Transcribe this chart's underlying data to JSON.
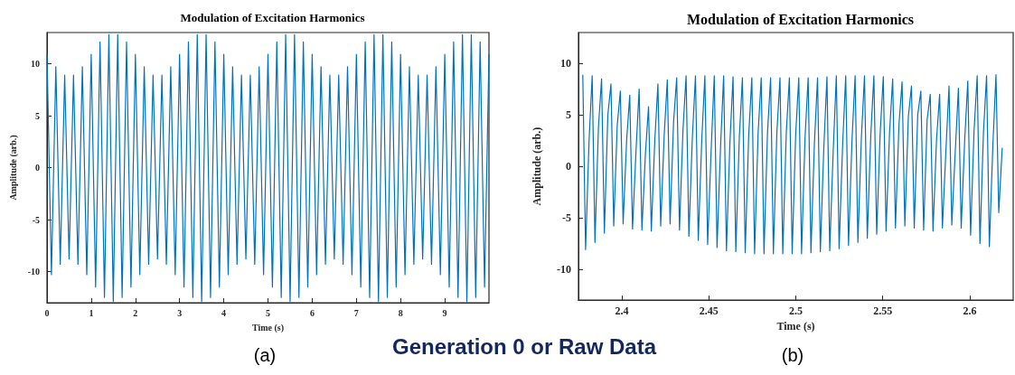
{
  "chart_data": [
    {
      "type": "line",
      "title": "Modulation of Excitation Harmonics",
      "xlabel": "Time (s)",
      "ylabel": "Amplitude (arb.)",
      "annotations": [
        "(a)",
        "Generation 0 or Raw Data"
      ],
      "xlim": [
        0,
        10
      ],
      "xticks": [
        0,
        1,
        2,
        3,
        4,
        5,
        6,
        7,
        8,
        9
      ],
      "ylim": [
        -13,
        13
      ],
      "yticks": [
        -10,
        -5,
        0,
        5,
        10
      ],
      "grid": false,
      "series": [
        {
          "color": "#0072bd",
          "x": [
            0,
            0.1,
            0.2,
            0.3,
            0.4,
            0.5,
            0.6,
            0.7,
            0.8,
            0.9,
            1,
            1.1,
            1.2,
            1.3,
            1.4,
            1.5,
            1.6,
            1.7,
            1.8,
            1.9,
            2,
            2.1,
            2.2,
            2.3,
            2.4,
            2.5,
            2.6,
            2.7,
            2.8,
            2.9,
            3,
            3.1,
            3.2,
            3.3,
            3.4,
            3.5,
            3.6,
            3.7,
            3.8,
            3.9,
            4,
            4.1,
            4.2,
            4.3,
            4.4,
            4.5,
            4.6,
            4.7,
            4.8,
            4.9,
            5,
            5.1,
            5.2,
            5.3,
            5.4,
            5.5,
            5.6,
            5.7,
            5.8,
            5.9,
            6,
            6.1,
            6.2,
            6.3,
            6.4,
            6.5,
            6.6,
            6.7,
            6.8,
            6.9,
            7,
            7.1,
            7.2,
            7.3,
            7.4,
            7.5,
            7.6,
            7.7,
            7.8,
            7.9,
            8,
            8.1,
            8.2,
            8.3,
            8.4,
            8.5,
            8.6,
            8.7,
            8.8,
            8.9,
            9,
            9.1,
            9.2,
            9.3,
            9.4,
            9.5,
            9.6,
            9.7,
            9.8,
            9.9,
            10
          ],
          "values": [
            10.9,
            -10.3,
            9.7,
            -9.3,
            8.9,
            -8.8,
            8.9,
            -9.3,
            9.7,
            -10.3,
            10.9,
            -11.5,
            12.1,
            -12.5,
            12.8,
            -12.9,
            12.8,
            -12.5,
            12.1,
            -11.5,
            10.9,
            -10.3,
            9.7,
            -9.3,
            8.9,
            -8.8,
            8.9,
            -9.3,
            9.7,
            -10.3,
            10.9,
            -11.5,
            12.1,
            -12.5,
            12.8,
            -12.9,
            12.8,
            -12.5,
            12.1,
            -11.5,
            10.9,
            -10.3,
            9.7,
            -9.3,
            8.9,
            -8.8,
            8.9,
            -9.3,
            9.7,
            -10.3,
            10.9,
            -11.5,
            12.1,
            -12.5,
            12.8,
            -12.9,
            12.8,
            -12.5,
            12.1,
            -11.5,
            10.9,
            -10.3,
            9.7,
            -9.3,
            8.9,
            -8.8,
            8.9,
            -9.3,
            9.7,
            -10.3,
            10.9,
            -11.5,
            12.1,
            -12.5,
            12.8,
            -12.9,
            12.8,
            -12.5,
            12.1,
            -11.5,
            10.9,
            -10.3,
            9.7,
            -9.3,
            8.9,
            -8.8,
            8.9,
            -9.3,
            9.7,
            -10.3,
            10.9,
            -11.5,
            12.1,
            -12.5,
            12.8,
            -12.9,
            12.8,
            -12.5,
            12.1,
            -11.5,
            10.9
          ]
        }
      ]
    },
    {
      "type": "line",
      "title": "Modulation of Excitation Harmonics",
      "xlabel": "Time (s)",
      "ylabel": "Amplitude (arb.)",
      "annotations": [
        "(b)"
      ],
      "xlim": [
        2.375,
        2.625
      ],
      "xticks": [
        2.4,
        2.45,
        2.5,
        2.55,
        2.6
      ],
      "ylim": [
        -13,
        13
      ],
      "yticks": [
        -10,
        -5,
        0,
        5,
        10
      ],
      "grid": false,
      "series": [
        {
          "color": "#0072bd",
          "x": [
            2.3775,
            2.3791,
            2.3811,
            2.3829,
            2.3845,
            2.3865,
            2.3883,
            2.3899,
            2.3919,
            2.3937,
            2.3953,
            2.3973,
            2.3991,
            2.4007,
            2.4027,
            2.4045,
            2.4061,
            2.4081,
            2.4099,
            2.4115,
            2.4135,
            2.4153,
            2.4169,
            2.4189,
            2.4207,
            2.4223,
            2.4243,
            2.4261,
            2.4277,
            2.4297,
            2.4315,
            2.4331,
            2.4351,
            2.4369,
            2.4385,
            2.4405,
            2.4423,
            2.4439,
            2.4459,
            2.4477,
            2.4493,
            2.4513,
            2.4531,
            2.4547,
            2.4567,
            2.4585,
            2.4601,
            2.4621,
            2.4639,
            2.4655,
            2.4675,
            2.4693,
            2.4709,
            2.4729,
            2.4747,
            2.4763,
            2.4783,
            2.4801,
            2.4817,
            2.4837,
            2.4855,
            2.4871,
            2.4891,
            2.4909,
            2.4925,
            2.4945,
            2.4963,
            2.4979,
            2.4999,
            2.5017,
            2.5033,
            2.5053,
            2.5071,
            2.5087,
            2.5107,
            2.5125,
            2.5141,
            2.5161,
            2.5179,
            2.5195,
            2.5215,
            2.5233,
            2.5249,
            2.5269,
            2.5287,
            2.5303,
            2.5323,
            2.5341,
            2.5357,
            2.5377,
            2.5395,
            2.5411,
            2.5431,
            2.5449,
            2.5465,
            2.5485,
            2.5503,
            2.5519,
            2.5539,
            2.5557,
            2.5573,
            2.5593,
            2.5611,
            2.5627,
            2.5647,
            2.5665,
            2.5681,
            2.5701,
            2.5719,
            2.5735,
            2.5755,
            2.5773,
            2.5789,
            2.5809,
            2.5827,
            2.5843,
            2.5863,
            2.5881,
            2.5897,
            2.5917,
            2.5935,
            2.5951,
            2.5971,
            2.5989,
            2.6005,
            2.6025,
            2.6043,
            2.6059,
            2.6079,
            2.6097,
            2.6113,
            2.6133,
            2.6151,
            2.6167,
            2.6187
          ],
          "values": [
            8.9,
            -8.1,
            2.5,
            8.8,
            -7.4,
            3.8,
            8.5,
            -6.5,
            5.0,
            8.0,
            -5.8,
            4.0,
            7.3,
            -5.6,
            2.5,
            6.9,
            -6.1,
            1.5,
            7.5,
            -6.2,
            1.2,
            5.8,
            -6.3,
            2.5,
            8.0,
            -5.8,
            3.0,
            8.4,
            -5.6,
            4.3,
            8.6,
            -6.2,
            3.5,
            8.8,
            -6.8,
            2.8,
            8.8,
            -7.2,
            2.5,
            8.8,
            -7.6,
            1.5,
            8.8,
            -7.9,
            1.8,
            8.8,
            -8.2,
            2.3,
            8.7,
            -8.3,
            2.8,
            8.6,
            -8.4,
            3.0,
            8.6,
            -8.5,
            3.2,
            8.6,
            -8.5,
            3.2,
            8.6,
            -8.5,
            3.3,
            8.6,
            -8.5,
            3.2,
            8.6,
            -8.5,
            3.0,
            8.6,
            -8.5,
            2.8,
            8.6,
            -8.4,
            2.3,
            8.6,
            -8.3,
            1.8,
            8.7,
            -8.2,
            1.5,
            8.8,
            -8.0,
            2.0,
            8.8,
            -7.7,
            2.5,
            8.8,
            -7.4,
            2.8,
            8.8,
            -7.0,
            3.0,
            8.8,
            -6.6,
            3.2,
            8.7,
            -6.3,
            3.3,
            8.5,
            -6.0,
            4.0,
            8.2,
            -5.8,
            4.8,
            7.8,
            -6.0,
            5.0,
            7.3,
            -6.2,
            4.5,
            7.0,
            -6.3,
            2.5,
            7.0,
            -6.0,
            1.5,
            7.8,
            -5.7,
            1.5,
            7.6,
            -6.0,
            2.5,
            8.3,
            -6.7,
            3.5,
            8.8,
            -7.5,
            3.3,
            8.8,
            -7.8,
            2.0,
            8.9,
            -4.5,
            1.8
          ]
        }
      ]
    }
  ]
}
